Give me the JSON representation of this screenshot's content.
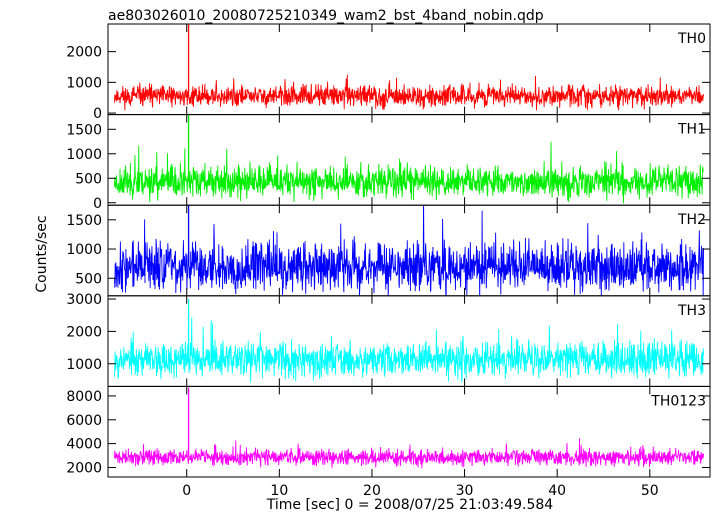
{
  "chart_data": {
    "type": "line",
    "title": "ae803026010_20080725210349_wam2_bst_4band_nobin.qdp",
    "xlabel": "Time [sec] 0 = 2008/07/25 21:03:49.584",
    "ylabel": "Counts/sec",
    "xlim": [
      -8.5,
      56.5
    ],
    "x_range_data": [
      -7.8,
      55.8
    ],
    "xticks": [
      0,
      10,
      20,
      30,
      40,
      50
    ],
    "grid": false,
    "legend": "none",
    "panels": [
      {
        "name": "TH0",
        "color": "#ff0000",
        "ylim": [
          -50,
          2900
        ],
        "yticks": [
          0,
          1000,
          2000
        ],
        "baseline": 550,
        "noise": 270,
        "spike_x": 0.2,
        "spike_y": 2900,
        "seed": 11
      },
      {
        "name": "TH1",
        "color": "#00ee00",
        "ylim": [
          -50,
          1800
        ],
        "yticks": [
          0,
          500,
          1000,
          1500
        ],
        "baseline": 430,
        "noise": 250,
        "spike_x": 0.2,
        "spike_y": 1800,
        "seed": 23
      },
      {
        "name": "TH2",
        "color": "#0000ff",
        "ylim": [
          200,
          1750
        ],
        "yticks": [
          500,
          1000,
          1500
        ],
        "baseline": 700,
        "noise": 330,
        "spike_x": 0.2,
        "spike_y": 1750,
        "seed": 37
      },
      {
        "name": "TH3",
        "color": "#00ffff",
        "ylim": [
          300,
          3100
        ],
        "yticks": [
          1000,
          2000,
          3000
        ],
        "baseline": 1150,
        "noise": 420,
        "spike_x": 0.2,
        "spike_y": 3000,
        "seed": 53
      },
      {
        "name": "TH0123",
        "color": "#ff00ff",
        "ylim": [
          1200,
          8800
        ],
        "yticks": [
          2000,
          4000,
          6000,
          8000
        ],
        "baseline": 2850,
        "noise": 520,
        "spike_x": 0.2,
        "spike_y": 8700,
        "seed": 71
      }
    ]
  }
}
